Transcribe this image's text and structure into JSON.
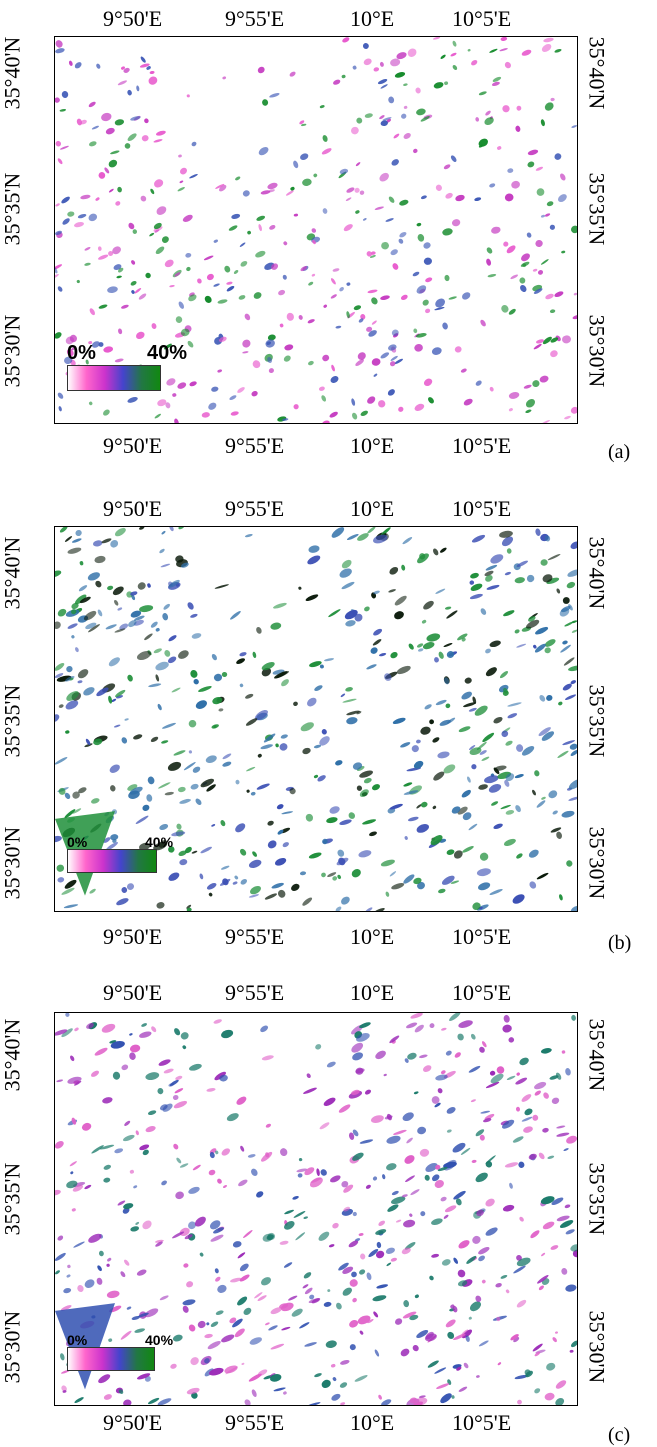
{
  "panels": [
    {
      "label": "(a)",
      "lon_ticks": [
        "9°50'E",
        "9°55'E",
        "10°E",
        "10°5'E"
      ],
      "lat_ticks": [
        "35°40'N",
        "35°35'N",
        "35°30'N"
      ],
      "legend": {
        "min": "0%",
        "max": "40%"
      },
      "dominant_colors": [
        "#e85acd",
        "#c63fc2",
        "#3f5ab7",
        "#138a2a"
      ]
    },
    {
      "label": "(b)",
      "lon_ticks": [
        "9°50'E",
        "9°55'E",
        "10°E",
        "10°5'E"
      ],
      "lat_ticks": [
        "35°40'N",
        "35°35'N",
        "35°30'N"
      ],
      "legend": {
        "min": "0%",
        "max": "40%"
      },
      "dominant_colors": [
        "#1f8f3a",
        "#2f6fa8",
        "#3b4fb4",
        "#0a1a0a"
      ]
    },
    {
      "label": "(c)",
      "lon_ticks": [
        "9°50'E",
        "9°55'E",
        "10°E",
        "10°5'E"
      ],
      "lat_ticks": [
        "35°40'N",
        "35°35'N",
        "35°30'N"
      ],
      "legend": {
        "min": "0%",
        "max": "40%"
      },
      "dominant_colors": [
        "#9c2bb8",
        "#3050b0",
        "#1a7a6a",
        "#e060c8"
      ]
    }
  ],
  "colorbar": {
    "colors": [
      "#ffffff",
      "#ff66cc",
      "#cc33cc",
      "#4444cc",
      "#227744",
      "#118811"
    ]
  }
}
